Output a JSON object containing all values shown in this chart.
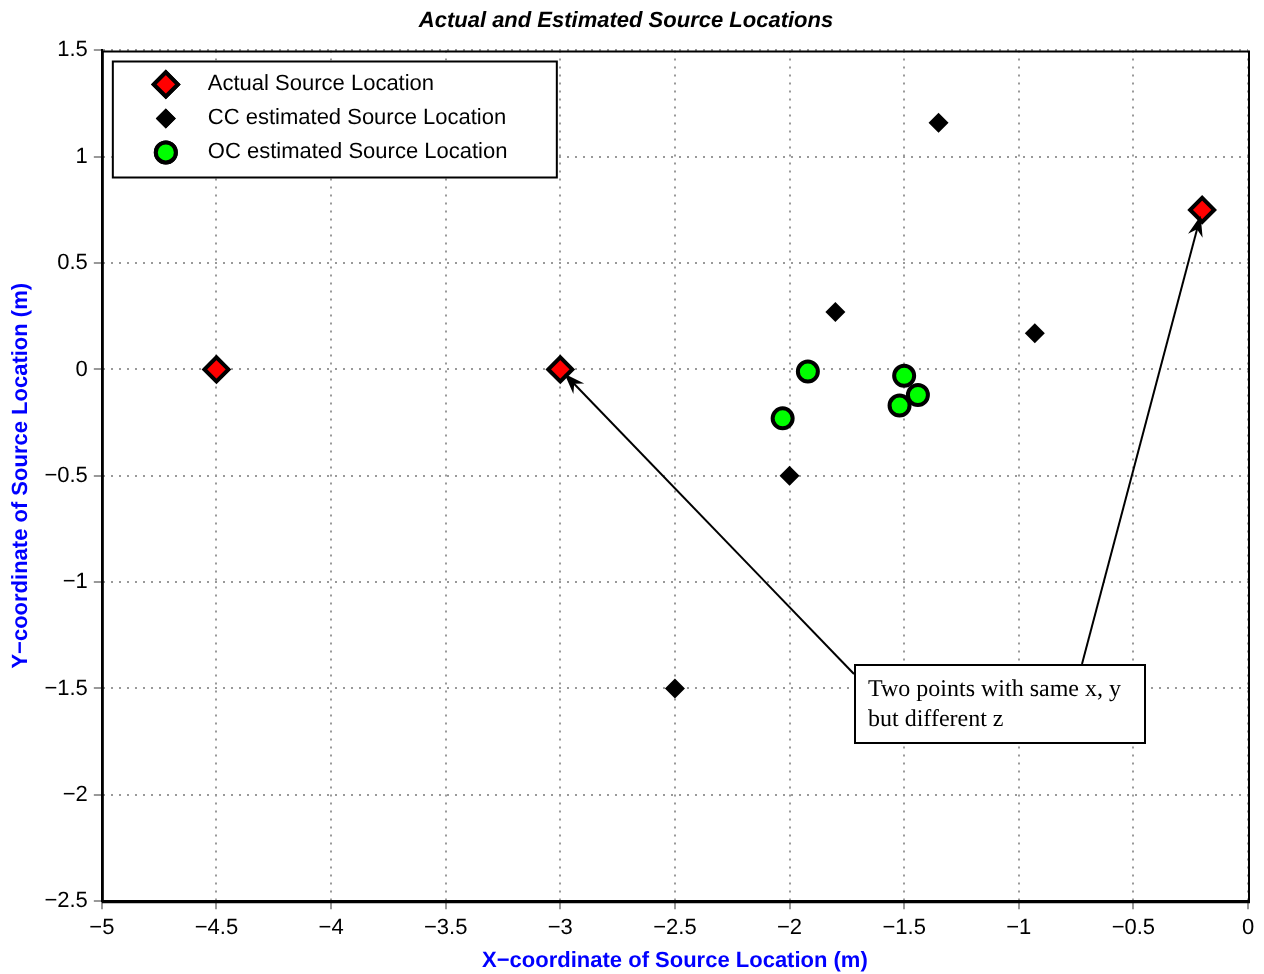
{
  "chart_data": {
    "type": "scatter",
    "title": "Actual and Estimated Source Locations",
    "xlabel": "X−coordinate of Source Location (m)",
    "ylabel": "Y−coordinate of Source Location (m)",
    "series": [
      {
        "name": "Actual Source Location",
        "color": "#ff0000",
        "marker": "diamond",
        "x": [
          -4.5,
          -3,
          -0.2
        ],
        "values": [
          0,
          0,
          0.75
        ]
      },
      {
        "name": "CC estimated Source Location",
        "color": "#000000",
        "marker": "diamond",
        "x": [
          -2.5,
          -2.0,
          -1.8,
          -1.35,
          -0.93
        ],
        "values": [
          -1.5,
          -0.5,
          0.27,
          1.16,
          0.17
        ]
      },
      {
        "name": "OC estimated Source Location",
        "color": "#00ff00",
        "marker": "circle",
        "x": [
          -2.03,
          -1.92,
          -1.5,
          -1.44,
          -1.52
        ],
        "values": [
          -0.23,
          -0.01,
          -0.03,
          -0.12,
          -0.17
        ]
      }
    ],
    "annotations": [
      {
        "text": "Two points with same x, y but different z",
        "x": -3,
        "y": 0
      }
    ],
    "xlim": [
      -5,
      0
    ],
    "xticks": [
      -5,
      -4.5,
      -4,
      -3.5,
      -3,
      -2.5,
      -2,
      -1.5,
      -1,
      -0.5,
      0
    ],
    "ylim": [
      -2.5,
      1.5
    ],
    "yticks": [
      -2.5,
      -2,
      -1.5,
      -1,
      -0.5,
      0,
      0.5,
      1,
      1.5
    ],
    "grid": true,
    "legend": "top left"
  }
}
